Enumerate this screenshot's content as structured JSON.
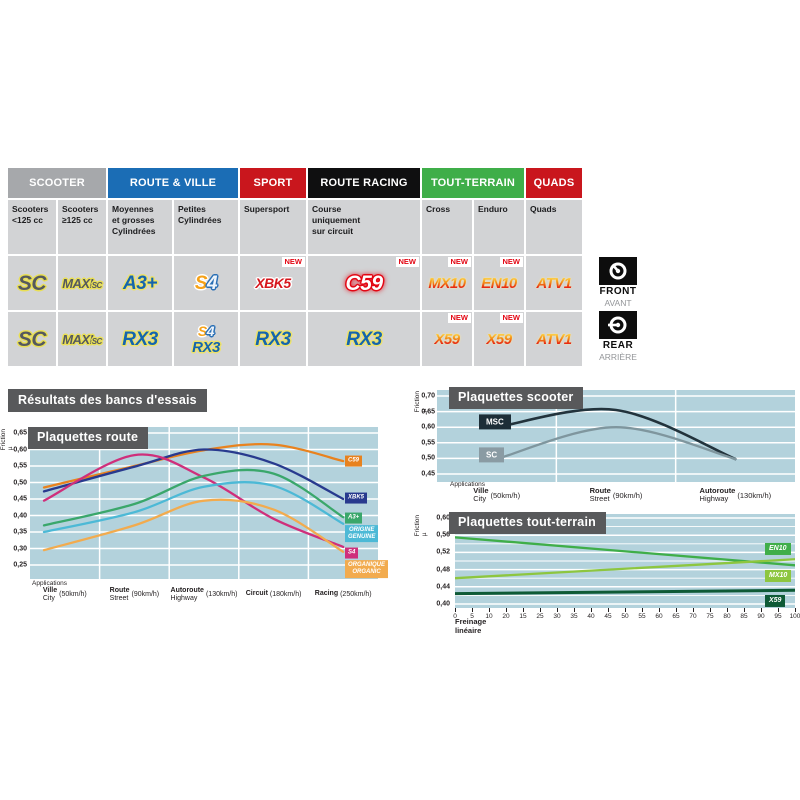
{
  "table": {
    "header_groups": [
      {
        "label": "SCOOTER",
        "color": "#a6a8ab",
        "span": 2
      },
      {
        "label": "ROUTE & VILLE",
        "color": "#1b6db5",
        "span": 2
      },
      {
        "label": "SPORT",
        "color": "#c9161d",
        "span": 1
      },
      {
        "label": "ROUTE RACING",
        "color": "#0f0f10",
        "span": 1
      },
      {
        "label": "TOUT-TERRAIN",
        "color": "#3fae49",
        "span": 2
      },
      {
        "label": "QUADS",
        "color": "#c9161d",
        "span": 1
      }
    ],
    "subheaders": [
      {
        "lines": [
          "Scooters",
          "<125 cc"
        ]
      },
      {
        "lines": [
          "Scooters",
          "≥125 cc"
        ]
      },
      {
        "lines": [
          "Moyennes",
          "et grosses",
          "Cylindrées"
        ]
      },
      {
        "lines": [
          "Petites",
          "Cylindrées"
        ]
      },
      {
        "lines": [
          "Supersport"
        ]
      },
      {
        "lines": [
          "Course",
          "uniquement",
          "sur circuit"
        ]
      },
      {
        "lines": [
          "Cross"
        ]
      },
      {
        "lines": [
          "Enduro"
        ]
      },
      {
        "lines": [
          "Quads"
        ]
      }
    ],
    "new_label": "NEW",
    "rows": [
      {
        "side": "front",
        "cells": [
          {
            "badges": [
              {
                "kind": "sc",
                "text": "SC"
              }
            ]
          },
          {
            "badges": [
              {
                "kind": "maxisc",
                "text": "MAXI",
                "sub": "SC"
              }
            ]
          },
          {
            "badges": [
              {
                "kind": "blue",
                "text": "A3+"
              }
            ]
          },
          {
            "badges": [
              {
                "kind": "s4",
                "text": "S4"
              }
            ]
          },
          {
            "badges": [
              {
                "kind": "xbk",
                "text": "XBK5"
              }
            ],
            "new": true
          },
          {
            "badges": [
              {
                "kind": "c59",
                "text": "C59"
              }
            ],
            "new": true
          },
          {
            "badges": [
              {
                "kind": "fire",
                "text": "MX10"
              }
            ],
            "new": true
          },
          {
            "badges": [
              {
                "kind": "fire",
                "text": "EN10"
              }
            ],
            "new": true
          },
          {
            "badges": [
              {
                "kind": "fire",
                "text": "ATV1"
              }
            ]
          }
        ]
      },
      {
        "side": "rear",
        "cells": [
          {
            "badges": [
              {
                "kind": "sc",
                "text": "SC"
              }
            ]
          },
          {
            "badges": [
              {
                "kind": "maxisc",
                "text": "MAXI",
                "sub": "SC"
              }
            ]
          },
          {
            "badges": [
              {
                "kind": "blue",
                "text": "RX3"
              }
            ]
          },
          {
            "badges": [
              {
                "kind": "s4",
                "text": "S4"
              },
              {
                "kind": "blue",
                "text": "RX3"
              }
            ]
          },
          {
            "badges": [
              {
                "kind": "blue",
                "text": "RX3"
              }
            ]
          },
          {
            "badges": [
              {
                "kind": "blue",
                "text": "RX3"
              }
            ]
          },
          {
            "badges": [
              {
                "kind": "fire",
                "text": "X59"
              }
            ],
            "new": true
          },
          {
            "badges": [
              {
                "kind": "fire",
                "text": "X59"
              }
            ],
            "new": true
          },
          {
            "badges": [
              {
                "kind": "fire",
                "text": "ATV1"
              }
            ]
          }
        ]
      }
    ],
    "position_labels": {
      "front": {
        "label": "FRONT",
        "sub": "AVANT"
      },
      "rear": {
        "label": "REAR",
        "sub": "ARRIÈRE"
      }
    }
  },
  "section_title": "Résultats des bancs d'essais",
  "chart_data": [
    {
      "id": "route",
      "type": "line",
      "title": "Plaquettes route",
      "ylabel": "Friction µ",
      "xlabel": "Applications",
      "ylim": [
        0.25,
        0.65
      ],
      "y_ticks": [
        "0,65",
        "0,60",
        "0,55",
        "0,50",
        "0,45",
        "0,40",
        "0,35",
        "0,30",
        "0,25"
      ],
      "categories": [
        {
          "fr": "Ville",
          "en": "City",
          "speed": "(50km/h)"
        },
        {
          "fr": "Route",
          "en": "Street",
          "speed": "(90km/h)"
        },
        {
          "fr": "Autoroute",
          "en": "Highway",
          "speed": "(130km/h)"
        },
        {
          "fr": "Circuit",
          "en": "",
          "speed": "(180km/h)"
        },
        {
          "fr": "Racing",
          "en": "",
          "speed": "(250km/h)"
        }
      ],
      "series": [
        {
          "name": "C59",
          "color": "#e8821e",
          "values": [
            0.485,
            0.55,
            0.598,
            0.615,
            0.565
          ]
        },
        {
          "name": "XBK5",
          "color": "#283a8e",
          "values": [
            0.473,
            0.548,
            0.6,
            0.558,
            0.45
          ]
        },
        {
          "name": "S4",
          "color": "#cf2f7b",
          "values": [
            0.445,
            0.583,
            0.515,
            0.39,
            0.305
          ]
        },
        {
          "name": "A3+",
          "color": "#3aa76b",
          "values": [
            0.37,
            0.435,
            0.52,
            0.527,
            0.395
          ]
        },
        {
          "name": "ORIGINE GENUINE",
          "color": "#4cb9d6",
          "values": [
            0.35,
            0.41,
            0.487,
            0.49,
            0.375
          ]
        },
        {
          "name": "ORGANIQUE ORGANIC",
          "color": "#f2ab4e",
          "values": [
            0.295,
            0.37,
            0.445,
            0.418,
            0.29
          ]
        }
      ],
      "legend": [
        {
          "lines": [
            "C59"
          ],
          "color": "#e8821e",
          "v": 0.565
        },
        {
          "lines": [
            "XBK5"
          ],
          "color": "#283a8e",
          "v": 0.452
        },
        {
          "lines": [
            "A3+"
          ],
          "color": "#3aa76b",
          "v": 0.392
        },
        {
          "lines": [
            "ORIGINE",
            "GENUINE"
          ],
          "color": "#4cb9d6",
          "v": 0.345
        },
        {
          "lines": [
            "S4"
          ],
          "color": "#cf2f7b",
          "v": 0.287
        },
        {
          "lines": [
            "ORGANIQUE",
            "ORGANIC"
          ],
          "color": "#f2ab4e",
          "v": 0.237
        }
      ],
      "legend_position": "right",
      "grid": true
    },
    {
      "id": "scooter",
      "type": "line",
      "title": "Plaquettes scooter",
      "ylabel": "Friction µ",
      "xlabel": "Applications",
      "ylim": [
        0.45,
        0.7
      ],
      "y_ticks": [
        "0,70",
        "0,65",
        "0,60",
        "0,55",
        "0,50",
        "0,45"
      ],
      "categories": [
        {
          "fr": "Ville",
          "en": "City",
          "speed": "(50km/h)"
        },
        {
          "fr": "Route",
          "en": "Street",
          "speed": "(90km/h)"
        },
        {
          "fr": "Autoroute",
          "en": "Highway",
          "speed": "(130km/h)"
        }
      ],
      "series": [
        {
          "name": "MSC",
          "color": "#22333c",
          "values": [
            0.6,
            0.655,
            0.498
          ]
        },
        {
          "name": "SC",
          "color": "#7f969e",
          "values": [
            0.498,
            0.6,
            0.498
          ]
        }
      ],
      "legend": [
        {
          "lines": [
            "MSC"
          ],
          "color": "#1d2e37",
          "v": 0.617
        },
        {
          "lines": [
            "SC"
          ],
          "color": "#8a9ba3",
          "v": 0.512
        }
      ],
      "legend_position": "left",
      "grid": true
    },
    {
      "id": "terrain",
      "type": "line",
      "title": "Plaquettes tout-terrain",
      "ylabel": "Friction µ",
      "xlabel": "Freinage linéaire",
      "ylim": [
        0.4,
        0.6
      ],
      "y_ticks": [
        "0,60",
        "0,56",
        "0,52",
        "0,48",
        "0,44",
        "0,40"
      ],
      "x_ticks": [
        "0",
        "5",
        "10",
        "20",
        "15",
        "25",
        "30",
        "35",
        "40",
        "45",
        "50",
        "55",
        "60",
        "65",
        "70",
        "75",
        "80",
        "85",
        "90",
        "95",
        "100"
      ],
      "xlim": [
        0,
        100
      ],
      "series": [
        {
          "name": "EN10",
          "color": "#3fae49",
          "values": [
            0.555,
            0.49
          ]
        },
        {
          "name": "MX10",
          "color": "#8dc63f",
          "values": [
            0.46,
            0.504
          ]
        },
        {
          "name": "X59",
          "color": "#0e5a36",
          "values": [
            0.424,
            0.432
          ]
        }
      ],
      "legend": [
        {
          "lines": [
            "EN10"
          ],
          "color": "#3fae49",
          "v": 0.528
        },
        {
          "lines": [
            "MX10"
          ],
          "color": "#8dc63f",
          "v": 0.466
        },
        {
          "lines": [
            "X59"
          ],
          "color": "#0e5a36",
          "v": 0.408
        }
      ],
      "legend_position": "right",
      "grid": true
    }
  ]
}
